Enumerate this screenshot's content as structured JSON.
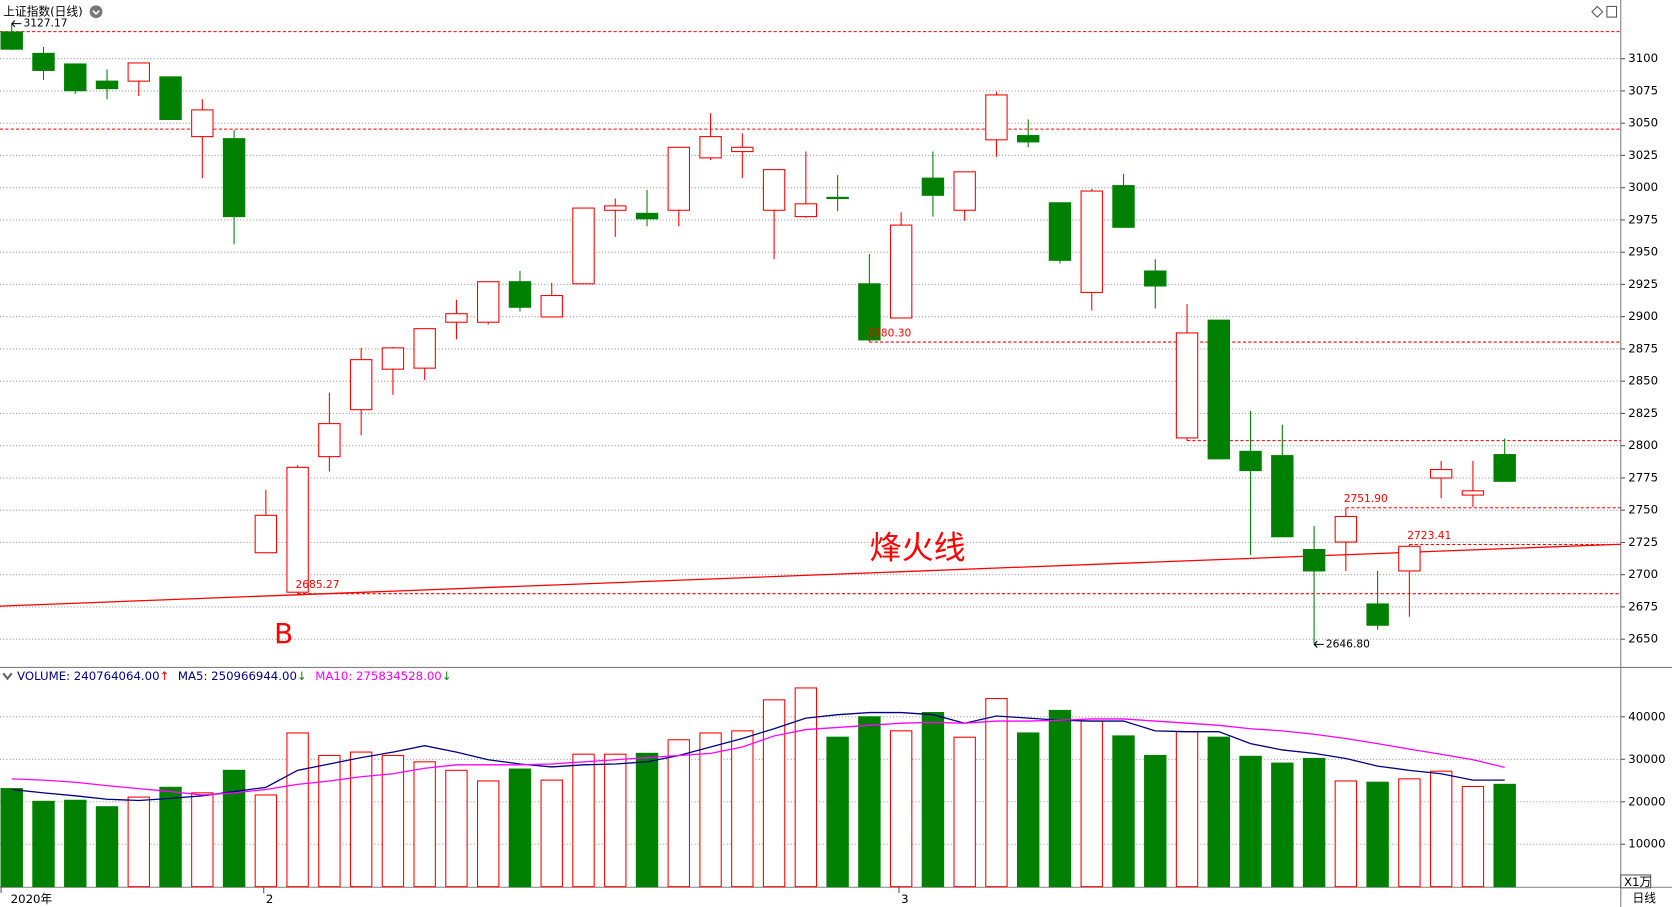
{
  "header": {
    "title": "上证指数(日线)"
  },
  "chart_data": [
    {
      "type": "candlestick",
      "categories": [
        "2020年",
        null,
        null,
        null,
        null,
        null,
        null,
        null,
        "2",
        null,
        null,
        null,
        null,
        null,
        null,
        null,
        null,
        null,
        null,
        null,
        null,
        null,
        null,
        null,
        null,
        null,
        null,
        null,
        "3",
        null,
        null,
        null,
        null,
        null,
        null,
        null,
        null,
        null,
        null,
        null,
        null,
        null,
        null,
        null,
        null,
        null,
        null,
        null
      ],
      "open": [
        3120.7,
        3104.1,
        3095.9,
        3082.6,
        3082.6,
        3085.9,
        3039.6,
        3038.0,
        2717.0,
        2686.4,
        2791.5,
        2827.9,
        2859.3,
        2860.1,
        2895.7,
        2895.7,
        2927.1,
        2899.8,
        2925.5,
        2982.5,
        2980.1,
        2982.5,
        3023.1,
        3028.0,
        2982.5,
        2977.6,
        2992.5,
        2925.5,
        2899.0,
        3007.4,
        2982.5,
        3037.1,
        3040.4,
        2988.3,
        2918.8,
        3001.6,
        2935.4,
        2806.0,
        2897.3,
        2795.6,
        2792.3,
        2719.5,
        2725.3,
        2677.3,
        2702.9,
        2774.9,
        2761.7,
        2793.1
      ],
      "high": [
        3127.17,
        3109.1,
        3095.9,
        3091.7,
        3096.7,
        3085.9,
        3068.6,
        3044.6,
        2765.8,
        2784.8,
        2841.1,
        2875.8,
        2876.5,
        2890.7,
        2913.1,
        2927.1,
        2935.4,
        2926.3,
        2984.2,
        2991.6,
        2998.3,
        3031.3,
        3057.8,
        3042.1,
        3014.0,
        3028.0,
        3009.8,
        2948.6,
        2980.9,
        3028.0,
        3012.3,
        3074.4,
        3052.9,
        2988.3,
        2999.1,
        3010.7,
        2944.5,
        2909.7,
        2897.3,
        2827.0,
        2816.3,
        2737.7,
        2751.9,
        2702.9,
        2723.41,
        2788.1,
        2788.1,
        2805.5
      ],
      "low": [
        3106.6,
        3083.5,
        3072.7,
        3068.6,
        3071.1,
        3052.9,
        3007.4,
        2956.1,
        2717.0,
        2685.27,
        2779.9,
        2808.0,
        2839.4,
        2851.0,
        2882.4,
        2894.0,
        2904.0,
        2899.8,
        2925.5,
        2961.9,
        2970.1,
        2970.1,
        3021.4,
        3007.4,
        2944.5,
        2976.7,
        2981.7,
        2880.3,
        2899.0,
        2977.6,
        2974.3,
        3023.9,
        3031.3,
        2941.2,
        2904.8,
        2969.3,
        2906.4,
        2803.9,
        2789.8,
        2715.3,
        2729.4,
        2646.8,
        2702.9,
        2657.4,
        2667.4,
        2759.2,
        2752.6,
        2772.4
      ],
      "close": [
        3107.4,
        3090.9,
        3075.2,
        3076.8,
        3096.7,
        3052.9,
        3060.3,
        2977.6,
        2746.0,
        2783.2,
        2817.1,
        2866.7,
        2875.8,
        2890.7,
        2902.3,
        2927.1,
        2907.3,
        2916.4,
        2984.2,
        2985.9,
        2975.9,
        3031.3,
        3039.6,
        3031.3,
        3014.0,
        2987.5,
        2991.6,
        2882.0,
        2971.0,
        2994.1,
        3012.3,
        3071.9,
        3035.5,
        2943.7,
        2997.4,
        2969.3,
        2923.8,
        2887.4,
        2789.8,
        2780.7,
        2729.4,
        2702.9,
        2745.1,
        2660.8,
        2722.0,
        2781.5,
        2765.0,
        2772.4
      ],
      "up_color": "#ff0000",
      "down_color": "#008000",
      "ylim": [
        2628.5,
        3143
      ],
      "yticks": [
        2650,
        2675,
        2700,
        2725,
        2750,
        2775,
        2800,
        2825,
        2850,
        2875,
        2900,
        2925,
        2950,
        2975,
        3000,
        3025,
        3050,
        3075,
        3100
      ],
      "grid": true,
      "dashed_levels": [
        3121,
        3045.4,
        2880.3,
        2803.9,
        2751.9,
        2723.41,
        2685.27
      ],
      "level_labels": [
        {
          "value": 2880.3,
          "label": "2880.30"
        },
        {
          "value": 2751.9,
          "label": "2751.90"
        },
        {
          "value": 2723.41,
          "label": "2723.41"
        },
        {
          "value": 2685.27,
          "label": "2685.27"
        }
      ],
      "extreme_labels": [
        {
          "value": 3127.17,
          "label": "3127.17"
        },
        {
          "value": 2646.8,
          "label": "2646.80"
        }
      ],
      "fire_line": {
        "label": "烽火线",
        "values": [
          2675.6,
          2723.6
        ]
      },
      "annotation": "B"
    },
    {
      "type": "bar",
      "values": [
        23100,
        20100,
        20350,
        18830,
        21100,
        23400,
        22100,
        27400,
        21600,
        36200,
        30900,
        31700,
        30900,
        29400,
        27400,
        24900,
        27700,
        25100,
        31200,
        31200,
        31400,
        34600,
        36200,
        36700,
        44000,
        46800,
        35200,
        40000,
        36700,
        41000,
        35200,
        44300,
        36200,
        41500,
        39000,
        35500,
        30900,
        36500,
        35200,
        30700,
        29100,
        30200,
        24900,
        24600,
        25400,
        27200,
        23600,
        24100
      ],
      "legend": [
        {
          "text": "VOLUME: 240764064.00",
          "trend": "↑",
          "color": "#000080"
        }
      ],
      "series": [
        {
          "name": "MA5",
          "legend": "MA5: 250966944.00",
          "trend": "↓",
          "color": "#000080",
          "values": [
            22900,
            22100,
            21400,
            20600,
            20300,
            20800,
            21400,
            22400,
            23400,
            27400,
            28900,
            30400,
            31700,
            33200,
            31700,
            29900,
            28900,
            28200,
            28700,
            28900,
            29400,
            30900,
            32900,
            34900,
            37200,
            39700,
            40500,
            41000,
            41000,
            40500,
            38500,
            40200,
            39700,
            39200,
            39000,
            39000,
            36700,
            36500,
            36500,
            33700,
            32200,
            31400,
            30200,
            28400,
            27400,
            26600,
            25100,
            25100
          ]
        },
        {
          "name": "MA10",
          "legend": "MA10: 275834528.00",
          "trend": "↓",
          "color": "#ff00ff",
          "values": [
            25400,
            25100,
            24600,
            23800,
            23100,
            22400,
            21600,
            22100,
            22900,
            24100,
            24900,
            25900,
            26600,
            27900,
            28700,
            28700,
            28700,
            28900,
            29400,
            29900,
            30400,
            30900,
            31400,
            32900,
            35500,
            37000,
            37500,
            38000,
            38500,
            38700,
            38500,
            39000,
            39000,
            39200,
            39500,
            39500,
            39000,
            38500,
            38000,
            37200,
            36700,
            35900,
            34900,
            33700,
            32400,
            31200,
            29900,
            28100
          ]
        }
      ],
      "ylim": [
        0,
        51000
      ],
      "yticks": [
        10000,
        20000,
        30000,
        40000
      ],
      "grid": true,
      "unit_label": "X1万",
      "period_label": "日线"
    }
  ]
}
